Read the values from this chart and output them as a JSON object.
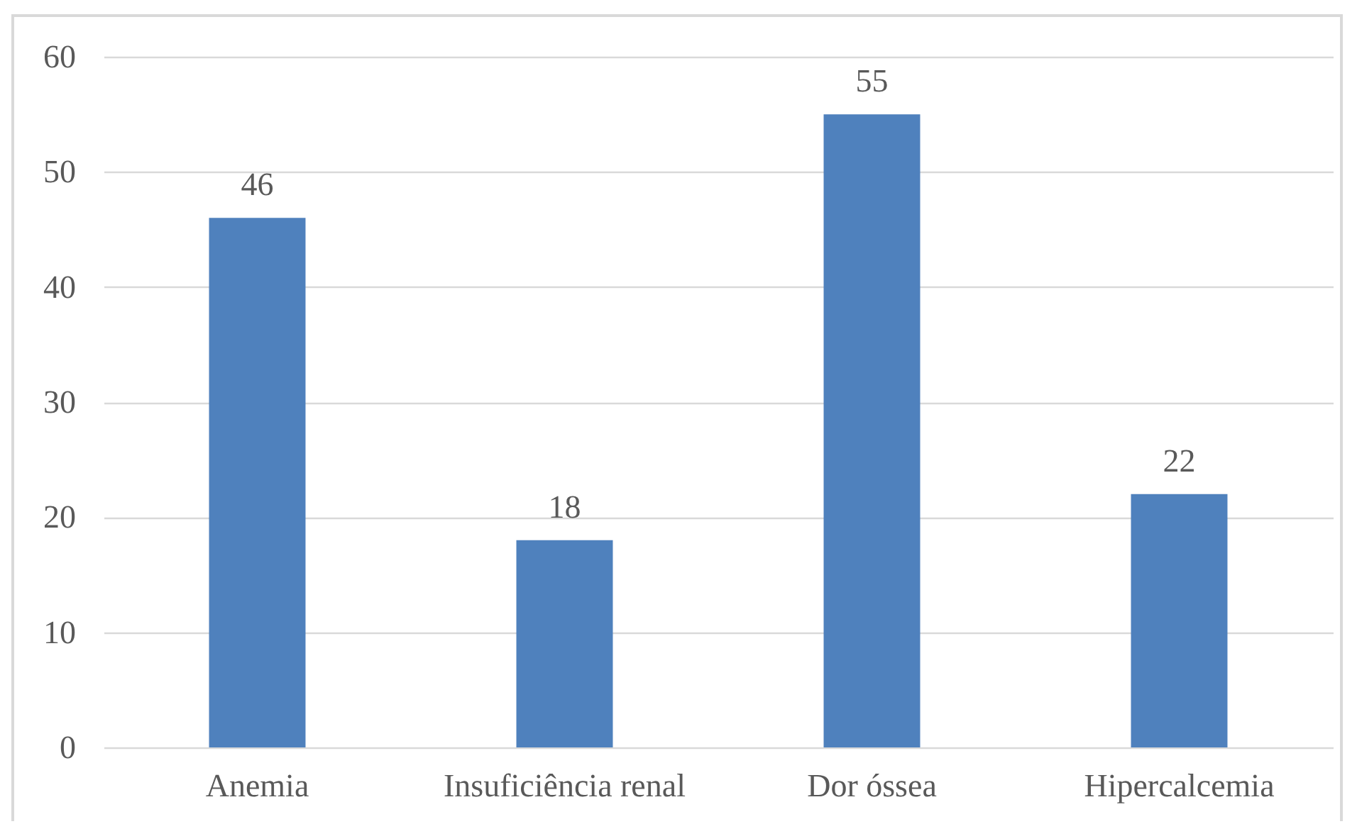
{
  "chart_data": {
    "type": "bar",
    "categories": [
      "Anemia",
      "Insuficiência renal",
      "Dor óssea",
      "Hipercalcemia"
    ],
    "values": [
      46,
      18,
      55,
      22
    ],
    "color": "#4f81bd",
    "ylim": [
      0,
      60
    ],
    "yticks": [
      0,
      10,
      20,
      30,
      40,
      50,
      60
    ],
    "grid": "y",
    "data_labels": true
  }
}
